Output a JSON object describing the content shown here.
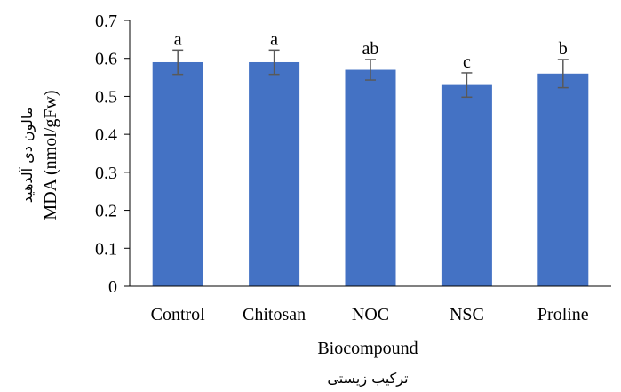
{
  "chart_data": {
    "type": "bar",
    "categories": [
      "Control",
      "Chitosan",
      "NOC",
      "NSC",
      "Proline"
    ],
    "values": [
      0.59,
      0.59,
      0.57,
      0.53,
      0.56
    ],
    "error": [
      0.032,
      0.032,
      0.027,
      0.032,
      0.037
    ],
    "significance_letters": [
      "a",
      "a",
      "ab",
      "c",
      "b"
    ],
    "ylim": [
      0,
      0.7
    ],
    "yticks": [
      "0",
      "0.1",
      "0.2",
      "0.3",
      "0.4",
      "0.5",
      "0.6",
      "0.7"
    ],
    "ylabel": "MDA (nmol/gFw)",
    "ylabel_fa": "مالون دی آلدهید",
    "xlabel": "Biocompound",
    "xlabel_fa": "ترکیب زیستی",
    "grid": false,
    "bar_color": "#4472C4",
    "error_color": "#595959",
    "axis_color": "#000000"
  }
}
